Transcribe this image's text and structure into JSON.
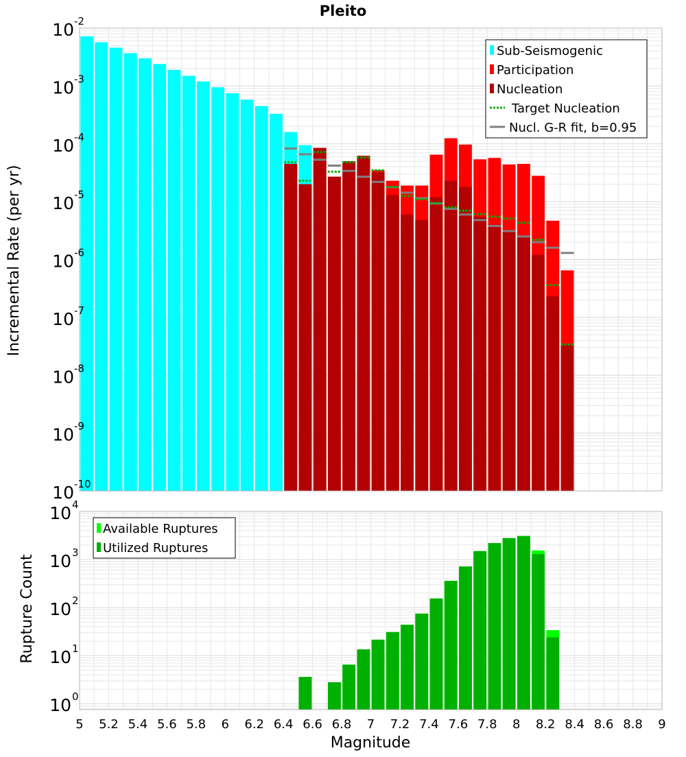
{
  "figure": {
    "title": "Pleito",
    "xlabel": "Magnitude"
  },
  "colors": {
    "sub_seismogenic": "#00ffff",
    "participation": "#ff0000",
    "nucleation": "#b30000",
    "target_nucleation": "#00b000",
    "gr_fit": "#808080",
    "available": "#00ff00",
    "utilized": "#00b000",
    "grid": "#e6e6e6"
  },
  "chart_data": [
    {
      "type": "bar",
      "ylabel": "Incremental Rate (per yr)",
      "yscale": "log",
      "xlim": [
        5,
        9
      ],
      "ylim": [
        1e-10,
        0.01
      ],
      "ytick_exponents": [
        "-10",
        "-9",
        "-8",
        "-7",
        "-6",
        "-5",
        "-4",
        "-3",
        "-2"
      ],
      "ytick_base": "10",
      "grid": true,
      "legend_position": "top-right",
      "legend": [
        "Sub-Seismogenic",
        "Participation",
        "Nucleation",
        "Target Nucleation",
        "Nucl. G-R fit, b=0.95"
      ],
      "bin_width": 0.1,
      "sub_seismogenic": {
        "x": [
          5.05,
          5.15,
          5.25,
          5.35,
          5.45,
          5.55,
          5.65,
          5.75,
          5.85,
          5.95,
          6.05,
          6.15,
          6.25,
          6.35,
          6.45,
          6.55
        ],
        "values": [
          0.0072,
          0.0057,
          0.0046,
          0.0037,
          0.003,
          0.0024,
          0.0019,
          0.0015,
          0.0012,
          0.00095,
          0.00075,
          0.00058,
          0.00045,
          0.00033,
          0.00016,
          9.5e-05
        ]
      },
      "participation": {
        "x": [
          6.45,
          6.55,
          6.65,
          6.75,
          6.85,
          6.95,
          7.05,
          7.15,
          7.25,
          7.35,
          7.45,
          7.55,
          7.65,
          7.75,
          7.85,
          7.95,
          8.05,
          8.15,
          8.25,
          8.35
        ],
        "values": [
          4.5e-05,
          2e-05,
          8.5e-05,
          2.7e-05,
          5e-05,
          6.2e-05,
          3.5e-05,
          2.3e-05,
          1.9e-05,
          1.9e-05,
          6.5e-05,
          0.000125,
          9.7e-05,
          5.4e-05,
          5.7e-05,
          4.4e-05,
          4.5e-05,
          2.8e-05,
          4.7e-06,
          6.5e-07
        ]
      },
      "nucleation": {
        "x": [
          6.45,
          6.55,
          6.65,
          6.75,
          6.85,
          6.95,
          7.05,
          7.15,
          7.25,
          7.35,
          7.45,
          7.55,
          7.65,
          7.75,
          7.85,
          7.95,
          8.05,
          8.15,
          8.25,
          8.35
        ],
        "values": [
          4.5e-05,
          2e-05,
          8.5e-05,
          2.7e-05,
          5e-05,
          6.2e-05,
          3.2e-05,
          1.3e-05,
          6e-06,
          4.8e-06,
          1.2e-05,
          2.3e-05,
          1.8e-05,
          5.5e-06,
          4e-06,
          3e-06,
          2.5e-06,
          1.2e-06,
          2.3e-07,
          3.4e-08
        ]
      },
      "target_nucleation": {
        "x": [
          6.45,
          6.55,
          6.65,
          6.75,
          6.85,
          6.95,
          7.05,
          7.15,
          7.25,
          7.35,
          7.45,
          7.55,
          7.65,
          7.75,
          7.85,
          7.95,
          8.05,
          8.15,
          8.25,
          8.35
        ],
        "values": [
          4.8e-05,
          2.3e-05,
          7.2e-05,
          3.3e-05,
          4.8e-05,
          5.8e-05,
          3.5e-05,
          1.8e-05,
          1.25e-05,
          1.1e-05,
          9.5e-06,
          8e-06,
          7e-06,
          6.1e-06,
          5.5e-06,
          5.1e-06,
          4.3e-06,
          2.2e-06,
          3.6e-07,
          3.4e-08
        ]
      },
      "gr_fit": {
        "x": [
          6.45,
          6.55,
          6.65,
          6.75,
          6.85,
          6.95,
          7.05,
          7.15,
          7.25,
          7.35,
          7.45,
          7.55,
          7.65,
          7.75,
          7.85,
          7.95,
          8.05,
          8.15,
          8.25,
          8.35
        ],
        "values": [
          8.3e-05,
          6.6e-05,
          5.3e-05,
          4.2e-05,
          3.4e-05,
          2.7e-05,
          2.2e-05,
          1.78e-05,
          1.43e-05,
          1.15e-05,
          9.3e-06,
          7.5e-06,
          6e-06,
          4.8e-06,
          3.8e-06,
          3.1e-06,
          2.5e-06,
          2e-06,
          1.6e-06,
          1.3e-06
        ]
      }
    },
    {
      "type": "bar",
      "ylabel": "Rupture Count",
      "yscale": "log",
      "xlim": [
        5,
        9
      ],
      "ylim": [
        0.75,
        10000
      ],
      "ytick_exponents": [
        "0",
        "1",
        "2",
        "3",
        "4"
      ],
      "ytick_base": "10",
      "xticks": [
        "5",
        "5.2",
        "5.4",
        "5.6",
        "5.8",
        "6",
        "6.2",
        "6.4",
        "6.6",
        "6.8",
        "7",
        "7.2",
        "7.4",
        "7.6",
        "7.8",
        "8",
        "8.2",
        "8.4",
        "8.6",
        "8.8",
        "9"
      ],
      "grid": true,
      "legend_position": "top-left",
      "legend": [
        "Available Ruptures",
        "Utilized Ruptures"
      ],
      "bin_width": 0.1,
      "available": {
        "x": [
          6.55,
          6.75,
          6.85,
          6.95,
          7.05,
          7.15,
          7.25,
          7.35,
          7.45,
          7.55,
          7.65,
          7.75,
          7.85,
          7.95,
          8.05,
          8.15,
          8.25
        ],
        "values": [
          3.6,
          2.8,
          6.5,
          13.5,
          21.5,
          31,
          44,
          75,
          155,
          360,
          720,
          1500,
          2200,
          2800,
          3100,
          1550,
          34
        ]
      },
      "utilized": {
        "x": [
          6.55,
          6.75,
          6.85,
          6.95,
          7.05,
          7.15,
          7.25,
          7.35,
          7.45,
          7.55,
          7.65,
          7.75,
          7.85,
          7.95,
          8.05,
          8.15,
          8.25
        ],
        "values": [
          3.6,
          2.8,
          6.5,
          13.5,
          21.5,
          31,
          44,
          75,
          155,
          360,
          720,
          1500,
          2200,
          2800,
          3100,
          1300,
          24
        ]
      }
    }
  ]
}
